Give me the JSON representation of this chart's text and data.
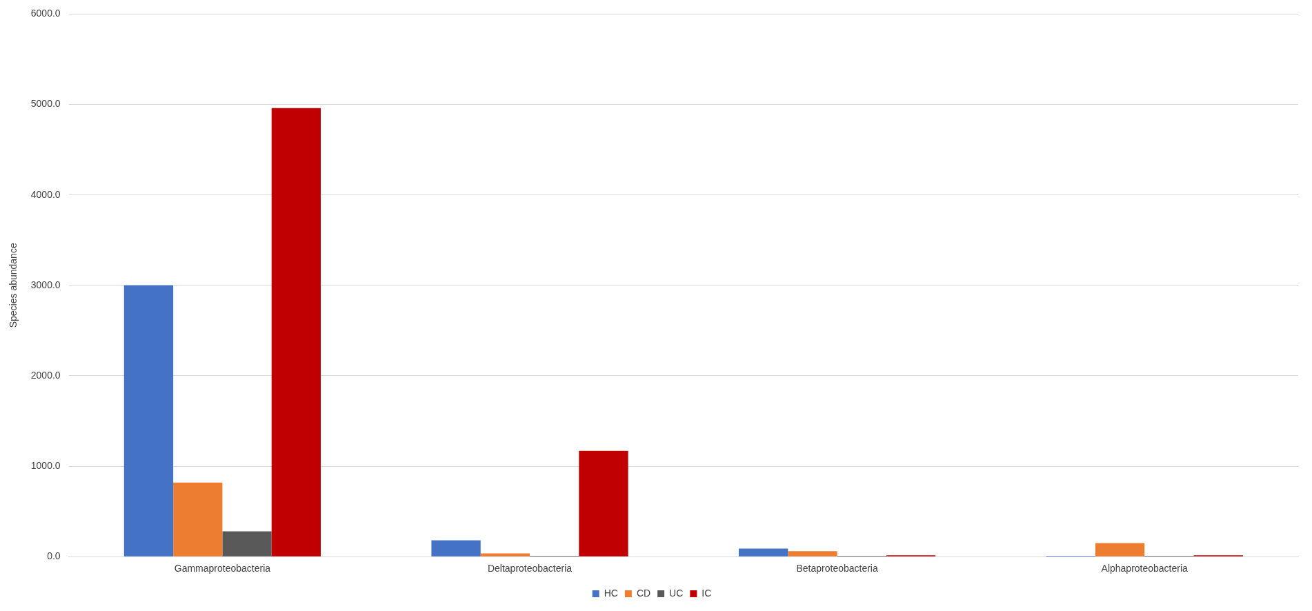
{
  "chart_data": {
    "type": "bar",
    "ylabel": "Species abundance",
    "categories": [
      "Gammaproteobacteria",
      "Deltaproteobacteria",
      "Betaproteobacteria",
      "Alphaproteobacteria"
    ],
    "series": [
      {
        "name": "HC",
        "color": "#4472c4",
        "values": [
          3000,
          180,
          90,
          10
        ]
      },
      {
        "name": "CD",
        "color": "#ed7d31",
        "values": [
          820,
          35,
          60,
          150
        ]
      },
      {
        "name": "UC",
        "color": "#595959",
        "values": [
          280,
          10,
          10,
          10
        ]
      },
      {
        "name": "IC",
        "color": "#c00000",
        "values": [
          4960,
          1170,
          15,
          15
        ]
      }
    ],
    "ylim": [
      0,
      6000
    ],
    "yticks": [
      {
        "value": 0,
        "label": "0.0"
      },
      {
        "value": 1000,
        "label": "1000.0"
      },
      {
        "value": 2000,
        "label": "2000.0"
      },
      {
        "value": 3000,
        "label": "3000.0"
      },
      {
        "value": 4000,
        "label": "4000.0"
      },
      {
        "value": 5000,
        "label": "5000.0"
      },
      {
        "value": 6000,
        "label": "6000.0"
      }
    ],
    "grid": "y",
    "legend": "bottom"
  }
}
